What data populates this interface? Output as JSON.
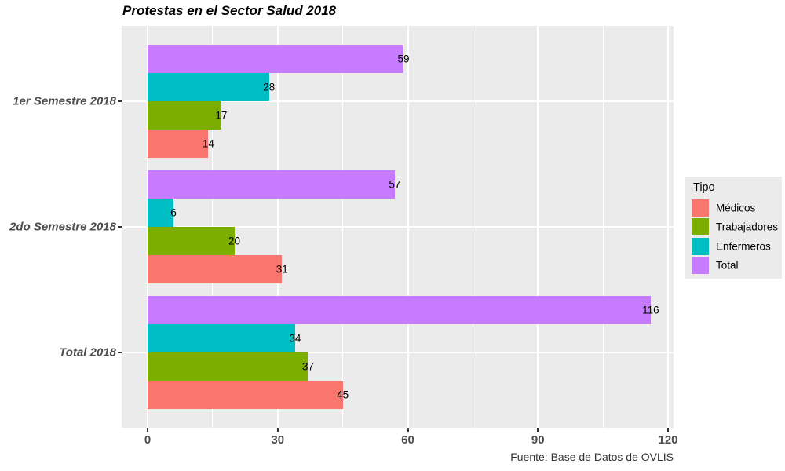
{
  "title": "Protestas en el Sector Salud 2018",
  "caption": "Fuente: Base de Datos de OVLIS",
  "legend": {
    "title": "Tipo",
    "position": "right",
    "items": [
      {
        "label": "Médicos",
        "color": "#F8766D"
      },
      {
        "label": "Trabajadores",
        "color": "#7CAE00"
      },
      {
        "label": "Enfermeros",
        "color": "#00BFC4"
      },
      {
        "label": "Total",
        "color": "#C77CFF"
      }
    ]
  },
  "chart_data": {
    "type": "bar",
    "orientation": "horizontal",
    "title": "Protestas en el Sector Salud 2018",
    "xlabel": "",
    "ylabel": "",
    "categories": [
      "1er Semestre 2018",
      "2do Semestre 2018",
      "Total 2018"
    ],
    "series": [
      {
        "name": "Médicos",
        "color": "#F8766D",
        "values": [
          14,
          31,
          45
        ]
      },
      {
        "name": "Trabajadores",
        "color": "#7CAE00",
        "values": [
          17,
          20,
          37
        ]
      },
      {
        "name": "Enfermeros",
        "color": "#00BFC4",
        "values": [
          28,
          6,
          34
        ]
      },
      {
        "name": "Total",
        "color": "#C77CFF",
        "values": [
          59,
          57,
          116
        ]
      }
    ],
    "bar_labels": true,
    "x_ticks": [
      0,
      30,
      60,
      90,
      120
    ],
    "x_minor_ticks": [
      15,
      45,
      75,
      105
    ],
    "xlim": [
      0,
      121
    ],
    "grid": true,
    "panel_background": "#EBEBEB",
    "gridline_color": "#FFFFFF",
    "legend_position": "right"
  }
}
